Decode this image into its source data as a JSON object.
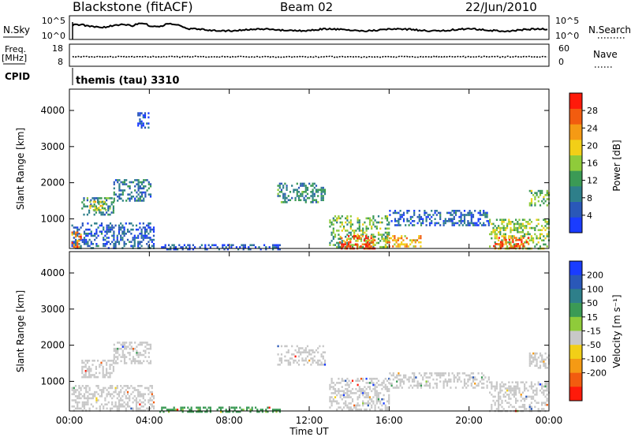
{
  "header": {
    "station": "Blackstone (fitACF)",
    "beam": "Beam 02",
    "date": "22/Jun/2010"
  },
  "strips": {
    "nsky": {
      "label": "N.Sky",
      "ticks": [
        "10^5",
        "10^0"
      ]
    },
    "nsearch": {
      "label": "N.Search",
      "ticks": [
        "10^5",
        "10^0"
      ]
    },
    "freq": {
      "label_line1": "Freq.",
      "label_line2": "[MHz]",
      "ticks": [
        "18",
        "8"
      ]
    },
    "nave": {
      "label": "Nave",
      "ticks": [
        "60",
        "0"
      ]
    },
    "cpid": {
      "label": "CPID",
      "value": "themis (tau) 3310"
    }
  },
  "chart_data": [
    {
      "type": "heatmap",
      "panel": "power",
      "ylabel": "Slant Range [km]",
      "xlabel": "",
      "yticks": [
        "1000",
        "2000",
        "3000",
        "4000"
      ],
      "ylim": [
        180,
        4590
      ],
      "xlim": [
        0,
        24
      ],
      "colorbar": {
        "label": "Power [dB]",
        "ticks": [
          "28",
          "24",
          "20",
          "16",
          "12",
          "8",
          "4"
        ],
        "range": [
          0,
          32
        ],
        "colors": [
          "#1a3cff",
          "#2a58b8",
          "#2e7f8a",
          "#3b9a55",
          "#8fcb3a",
          "#f2cf17",
          "#f59a14",
          "#f25c0f",
          "#ff1a0a"
        ]
      },
      "regions": [
        {
          "t0": 0.1,
          "t1": 4.2,
          "r0": 180,
          "r1": 900,
          "power": 6
        },
        {
          "t0": 0.1,
          "t1": 0.6,
          "r0": 250,
          "r1": 650,
          "power": 24
        },
        {
          "t0": 0.6,
          "t1": 2.2,
          "r0": 1100,
          "r1": 1600,
          "power": 10
        },
        {
          "t0": 1.0,
          "t1": 1.8,
          "r0": 1250,
          "r1": 1500,
          "power": 18
        },
        {
          "t0": 2.2,
          "t1": 4.1,
          "r0": 1500,
          "r1": 2100,
          "power": 8
        },
        {
          "t0": 3.4,
          "t1": 4.0,
          "r0": 3500,
          "r1": 3950,
          "power": 4
        },
        {
          "t0": 10.4,
          "t1": 12.8,
          "r0": 1450,
          "r1": 2000,
          "power": 10
        },
        {
          "t0": 13.0,
          "t1": 16.0,
          "r0": 200,
          "r1": 1100,
          "power": 14
        },
        {
          "t0": 13.5,
          "t1": 15.3,
          "r0": 200,
          "r1": 550,
          "power": 28
        },
        {
          "t0": 15.8,
          "t1": 17.6,
          "r0": 250,
          "r1": 550,
          "power": 22
        },
        {
          "t0": 16.0,
          "t1": 21.0,
          "r0": 850,
          "r1": 1250,
          "power": 6
        },
        {
          "t0": 21.0,
          "t1": 24.0,
          "r0": 200,
          "r1": 1000,
          "power": 16
        },
        {
          "t0": 21.2,
          "t1": 23.0,
          "r0": 200,
          "r1": 500,
          "power": 28
        },
        {
          "t0": 23.0,
          "t1": 24.0,
          "r0": 1350,
          "r1": 1800,
          "power": 14
        },
        {
          "t0": 4.5,
          "t1": 10.5,
          "r0": 180,
          "r1": 300,
          "power": 5
        }
      ]
    },
    {
      "type": "heatmap",
      "panel": "velocity",
      "ylabel": "Slant Range [km]",
      "xlabel": "Time UT",
      "yticks": [
        "1000",
        "2000",
        "3000",
        "4000"
      ],
      "xticks": [
        "00:00",
        "04:00",
        "08:00",
        "12:00",
        "16:00",
        "20:00",
        "00:00"
      ],
      "ylim": [
        180,
        4590
      ],
      "xlim": [
        0,
        24
      ],
      "colorbar": {
        "label": "Velocity [m s⁻¹]",
        "ticks": [
          "200",
          "100",
          "50",
          "15",
          "-15",
          "-50",
          "-100",
          "-200"
        ],
        "colors": [
          "#1a3cff",
          "#2a58b8",
          "#2e7f8a",
          "#3b9a55",
          "#8fcb3a",
          "#c8c8c8",
          "#f2cf17",
          "#f59a14",
          "#f25c0f",
          "#ff1a0a"
        ]
      },
      "regions": [
        {
          "t0": 0.1,
          "t1": 4.2,
          "r0": 180,
          "r1": 900,
          "velocity": 0
        },
        {
          "t0": 0.6,
          "t1": 2.2,
          "r0": 1100,
          "r1": 1600,
          "velocity": 0
        },
        {
          "t0": 2.2,
          "t1": 4.1,
          "r0": 1500,
          "r1": 2100,
          "velocity": 0
        },
        {
          "t0": 10.4,
          "t1": 12.8,
          "r0": 1450,
          "r1": 2000,
          "velocity": 0
        },
        {
          "t0": 13.0,
          "t1": 16.0,
          "r0": 200,
          "r1": 1100,
          "velocity": 0
        },
        {
          "t0": 16.0,
          "t1": 21.0,
          "r0": 850,
          "r1": 1250,
          "velocity": 0
        },
        {
          "t0": 21.0,
          "t1": 24.0,
          "r0": 200,
          "r1": 1000,
          "velocity": 0
        },
        {
          "t0": 23.0,
          "t1": 24.0,
          "r0": 1350,
          "r1": 1800,
          "velocity": 0
        },
        {
          "t0": 4.5,
          "t1": 10.5,
          "r0": 180,
          "r1": 300,
          "velocity": 40
        }
      ]
    }
  ]
}
